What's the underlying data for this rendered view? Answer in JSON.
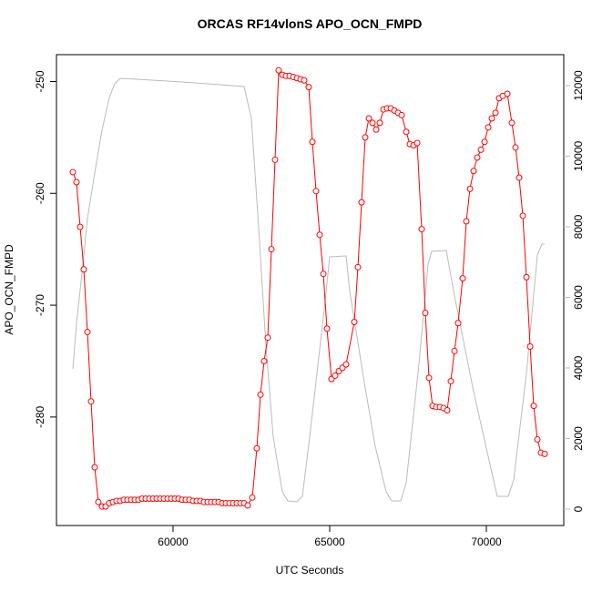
{
  "chart_data": {
    "type": "line",
    "title": "ORCAS RF14vlonS APO_OCN_FMPD",
    "xlabel": "UTC Seconds",
    "ylabel": "APO_OCN_FMPD",
    "xlim": [
      56280,
      72470
    ],
    "ylim": [
      -289.7,
      -247.6
    ],
    "y2lim": [
      -465,
      12877
    ],
    "xticks": [
      60000,
      65000,
      70000
    ],
    "yticks": [
      -250,
      -260,
      -270,
      -280
    ],
    "y2ticks": [
      0,
      2000,
      4000,
      6000,
      8000,
      10000,
      12000
    ],
    "y2tick_color": "#bbbbbb",
    "box": true,
    "grid": false,
    "series": [
      {
        "color": "#ff0000",
        "marker": "circle",
        "x": [
          56802,
          56919,
          57035,
          57151,
          57267,
          57384,
          57500,
          57616,
          57733,
          57849,
          57965,
          58081,
          58197,
          58314,
          58430,
          58546,
          58663,
          58779,
          58895,
          59011,
          59128,
          59244,
          59360,
          59477,
          59593,
          59709,
          59826,
          59942,
          60058,
          60174,
          60291,
          60407,
          60523,
          60640,
          60756,
          60872,
          60988,
          61105,
          61221,
          61337,
          61454,
          61570,
          61686,
          61802,
          61919,
          62035,
          62151,
          62268,
          62384,
          62529,
          62674,
          62791,
          62907,
          63023,
          63140,
          63256,
          63372,
          63489,
          63605,
          63721,
          63838,
          63954,
          64070,
          64186,
          64331,
          64448,
          64564,
          64680,
          64797,
          64913,
          65058,
          65174,
          65291,
          65407,
          65523,
          65785,
          65901,
          66017,
          66134,
          66250,
          66366,
          66483,
          66599,
          66715,
          66831,
          66948,
          67064,
          67180,
          67297,
          67442,
          67558,
          67675,
          67791,
          67936,
          68052,
          68169,
          68285,
          68401,
          68518,
          68634,
          68750,
          68866,
          68983,
          69099,
          69244,
          69360,
          69477,
          69593,
          69709,
          69826,
          69942,
          70058,
          70174,
          70291,
          70407,
          70523,
          70669,
          70814,
          70930,
          71047,
          71163,
          71279,
          71396,
          71512,
          71628,
          71744,
          71861
        ],
        "values": [
          -258.1,
          -259.0,
          -263.0,
          -266.8,
          -272.4,
          -278.6,
          -284.5,
          -287.6,
          -288.0,
          -288.0,
          -287.7,
          -287.6,
          -287.5,
          -287.5,
          -287.4,
          -287.4,
          -287.4,
          -287.4,
          -287.4,
          -287.3,
          -287.3,
          -287.3,
          -287.3,
          -287.3,
          -287.3,
          -287.3,
          -287.3,
          -287.3,
          -287.3,
          -287.3,
          -287.4,
          -287.4,
          -287.4,
          -287.5,
          -287.5,
          -287.5,
          -287.6,
          -287.6,
          -287.6,
          -287.6,
          -287.6,
          -287.7,
          -287.7,
          -287.7,
          -287.7,
          -287.7,
          -287.7,
          -287.7,
          -287.9,
          -287.2,
          -282.8,
          -278.0,
          -275.0,
          -272.9,
          -265.0,
          -257.0,
          -249.0,
          -249.4,
          -249.5,
          -249.5,
          -249.6,
          -249.7,
          -249.8,
          -249.9,
          -250.5,
          -255.4,
          -259.8,
          -263.7,
          -267.2,
          -272.1,
          -276.6,
          -276.3,
          -275.9,
          -275.6,
          -275.3,
          -271.5,
          -266.6,
          -260.8,
          -255.0,
          -253.3,
          -253.7,
          -254.3,
          -253.7,
          -252.5,
          -252.4,
          -252.4,
          -252.6,
          -252.8,
          -253.0,
          -254.5,
          -255.6,
          -255.7,
          -255.5,
          -263.2,
          -270.7,
          -276.5,
          -279.0,
          -279.1,
          -279.1,
          -279.2,
          -279.4,
          -276.8,
          -274.1,
          -271.6,
          -267.6,
          -262.5,
          -259.6,
          -258.0,
          -256.8,
          -256.1,
          -255.4,
          -254.1,
          -253.3,
          -252.8,
          -251.5,
          -251.3,
          -251.1,
          -253.7,
          -255.9,
          -258.6,
          -262.0,
          -267.5,
          -273.7,
          -279.0,
          -282.0,
          -283.2,
          -283.3
        ]
      },
      {
        "color": "#bbbbbb",
        "axis": "y2",
        "marker": "none",
        "x": [
          56802,
          56919,
          57093,
          57267,
          57500,
          57733,
          57965,
          58139,
          58314,
          58837,
          60291,
          62268,
          62500,
          62733,
          62965,
          63198,
          63489,
          63663,
          63954,
          64128,
          64361,
          64826,
          65000,
          65523,
          65640,
          66105,
          66454,
          66803,
          66977,
          67268,
          67442,
          67849,
          68140,
          68256,
          68721,
          69011,
          69593,
          70116,
          70349,
          70698,
          70872,
          71279,
          71628,
          71773,
          71861
        ],
        "values": [
          3974,
          5265,
          6684,
          8232,
          9523,
          10735,
          11665,
          12052,
          12206,
          12181,
          12103,
          11974,
          11071,
          7974,
          4619,
          2039,
          490,
          232,
          206,
          361,
          2039,
          5652,
          7148,
          7174,
          6168,
          3587,
          1781,
          490,
          232,
          232,
          748,
          4103,
          6942,
          7303,
          7329,
          5910,
          3329,
          1265,
          361,
          361,
          826,
          3845,
          7200,
          7510,
          7510
        ]
      }
    ]
  }
}
